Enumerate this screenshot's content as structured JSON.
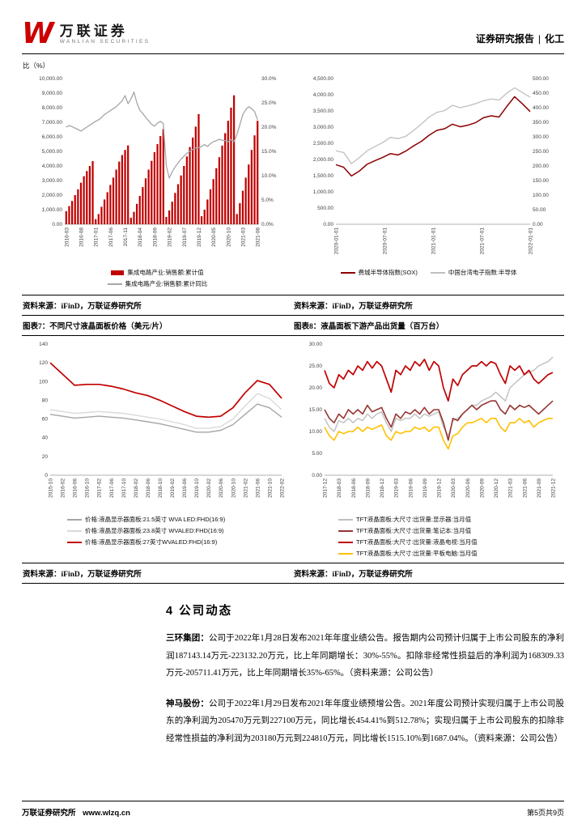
{
  "header": {
    "brand_w": "W",
    "brand_cn": "万联证券",
    "brand_en": "WANLIAN SECURITIES",
    "report_type": "证券研究报告",
    "divider": "|",
    "sector": "化工"
  },
  "charts_top": {
    "axis_note": "比（%）"
  },
  "sources": {
    "label": "资料来源：iFinD，万联证券研究所"
  },
  "figures": {
    "fig7": "图表7：不同尺寸液晶面板价格（美元/片）",
    "fig8": "图表8：液晶面板下游产品出货量（百万台）"
  },
  "section": {
    "title": "4 公司动态",
    "paragraphs": [
      {
        "lead": "三环集团：",
        "body": "公司于2022年1月28日发布2021年年度业绩公告。报告期内公司预计归属于上市公司股东的净利润187143.14万元-223132.20万元，比上年同期增长：30%-55%。扣除非经常性损益后的净利润为168309.33万元-205711.41万元，比上年同期增长35%-65%。（资料来源：公司公告）"
      },
      {
        "lead": "神马股份：",
        "body": "公司于2022年1月29日发布2021年年度业绩预增公告。2021年度公司预计实现归属于上市公司股东的净利润为205470万元到227100万元，同比增长454.41%到512.78%；实现归属于上市公司股东的扣除非经常性损益的净利润为203180万元到224810万元，同比增长1515.10%到1687.04%。（资料来源：公司公告）"
      }
    ]
  },
  "footer": {
    "org": "万联证券研究所",
    "url": "www.wlzq.cn",
    "page": "第5页共9页"
  },
  "colors": {
    "brand_red": "#cc0000",
    "chart_red": "#c00000",
    "dark_red": "#963634",
    "gray": "#a6a6a6",
    "light_gray": "#d9d9d9",
    "yellow": "#ffc000"
  },
  "chart_data": [
    {
      "type": "bar+line",
      "legend_position": "bottom",
      "x_ticks": [
        "2016-03",
        "2016-08",
        "2017-01",
        "2017-06",
        "2017-11",
        "2018-04",
        "2018-09",
        "2019-02",
        "2019-07",
        "2019-12",
        "2020-05",
        "2020-10",
        "2021-03",
        "2021-08"
      ],
      "ylim_left": [
        0,
        10000
      ],
      "yticks_left": [
        "0.00",
        "1,000.00",
        "2,000.00",
        "3,000.00",
        "4,000.00",
        "5,000.00",
        "6,000.00",
        "7,000.00",
        "8,000.00",
        "9,000.00",
        "10,000.00"
      ],
      "ylim_right": [
        0,
        30
      ],
      "yticks_right": [
        "0.0%",
        "5.0%",
        "10.0%",
        "15.0%",
        "20.0%",
        "25.0%",
        "30.0%"
      ],
      "series": [
        {
          "name": "集成电路产业:销售额:累计值",
          "type": "bar",
          "axis": "left",
          "color": "#c00000",
          "values": [
            900,
            1250,
            1600,
            2000,
            2400,
            2850,
            3300,
            3650,
            4000,
            4336,
            350,
            700,
            1200,
            1700,
            2200,
            2700,
            3200,
            3750,
            4300,
            4750,
            5100,
            5411,
            450,
            850,
            1400,
            1950,
            2550,
            3150,
            3750,
            4350,
            4950,
            5500,
            6050,
            6532,
            500,
            950,
            1550,
            2150,
            2750,
            3350,
            4000,
            4650,
            5300,
            5950,
            6700,
            7562,
            550,
            1000,
            1700,
            2400,
            3100,
            3850,
            4600,
            5400,
            6250,
            7100,
            8000,
            8848,
            700,
            1450,
            2300,
            3200,
            4100,
            5100,
            6100,
            7100
          ]
        },
        {
          "name": "集成电路产业:销售额:累计同比",
          "type": "line",
          "axis": "right",
          "color": "#a6a6a6",
          "values": [
            20.0,
            20.3,
            20.1,
            19.8,
            19.5,
            19.2,
            19.6,
            20.0,
            20.4,
            20.8,
            21.2,
            21.5,
            22.0,
            22.6,
            23.0,
            23.4,
            23.8,
            24.2,
            24.8,
            25.4,
            26.5,
            24.8,
            25.8,
            27.2,
            25.0,
            23.5,
            22.8,
            22.0,
            21.3,
            20.6,
            20.2,
            20.8,
            21.2,
            20.7,
            12.0,
            9.5,
            10.8,
            11.8,
            12.6,
            13.4,
            14.0,
            14.6,
            15.0,
            15.4,
            15.7,
            15.8,
            16.0,
            16.4,
            16.0,
            16.6,
            17.0,
            17.2,
            17.5,
            17.3,
            17.2,
            17.0,
            17.4,
            17.0,
            18.5,
            20.5,
            22.6,
            23.6,
            24.2,
            23.8,
            23.2,
            21.5
          ]
        }
      ]
    },
    {
      "type": "line",
      "legend_position": "bottom",
      "x_ticks": [
        "2020-01-01",
        "2020-07-01",
        "2021-01-01",
        "2021-07-01",
        "2022-01-01"
      ],
      "ylim_left": [
        0,
        4500
      ],
      "yticks_left": [
        "0.00",
        "500.00",
        "1,000.00",
        "1,500.00",
        "2,000.00",
        "2,500.00",
        "3,000.00",
        "3,500.00",
        "4,000.00",
        "4,500.00"
      ],
      "ylim_right": [
        0,
        500
      ],
      "yticks_right": [
        "0.00",
        "50.00",
        "100.00",
        "150.00",
        "200.00",
        "250.00",
        "300.00",
        "350.00",
        "400.00",
        "450.00",
        "500.00"
      ],
      "series": [
        {
          "name": "费城半导体指数(SOX)",
          "type": "line",
          "axis": "left",
          "color": "#8b0000",
          "values": [
            1840,
            1760,
            1490,
            1640,
            1850,
            1960,
            2060,
            2180,
            2140,
            2260,
            2420,
            2560,
            2750,
            2900,
            2950,
            3090,
            3010,
            3060,
            3140,
            3290,
            3350,
            3310,
            3640,
            3940,
            3720,
            3480
          ]
        },
        {
          "name": "中国台湾电子指数:半导体",
          "type": "line",
          "axis": "right",
          "color": "#bfbfbf",
          "values": [
            252,
            246,
            208,
            228,
            252,
            266,
            280,
            298,
            294,
            302,
            322,
            344,
            368,
            384,
            390,
            408,
            400,
            406,
            414,
            424,
            430,
            426,
            450,
            468,
            452,
            436
          ]
        }
      ]
    },
    {
      "type": "line",
      "title": "不同尺寸液晶面板价格（美元/片）",
      "legend_position": "bottom",
      "x_ticks": [
        "2015-10",
        "2016-02",
        "2016-06",
        "2016-10",
        "2017-02",
        "2017-06",
        "2017-10",
        "2018-02",
        "2018-06",
        "2018-10",
        "2019-02",
        "2019-06",
        "2019-10",
        "2020-02",
        "2020-06",
        "2020-10",
        "2021-02",
        "2021-06",
        "2021-10",
        "2022-02"
      ],
      "ylim_left": [
        0,
        140
      ],
      "yticks_left": [
        "0",
        "20",
        "40",
        "60",
        "80",
        "100",
        "120",
        "140"
      ],
      "series": [
        {
          "name": "价格:液晶显示器面板:21.5英寸 WVA LED:FHD(16:9)",
          "type": "line",
          "axis": "left",
          "color": "#a6a6a6",
          "values": [
            65,
            63,
            61,
            62,
            63,
            62,
            61,
            59,
            57,
            55,
            52,
            49,
            46,
            46,
            48,
            54,
            65,
            76,
            72,
            62
          ]
        },
        {
          "name": "价格:液晶显示器面板:23.8英寸 WVALED:FHD(16:9)",
          "type": "line",
          "axis": "left",
          "color": "#d9d9d9",
          "values": [
            70,
            68,
            66,
            67,
            68,
            67,
            66,
            64,
            62,
            60,
            57,
            54,
            50,
            50,
            52,
            60,
            74,
            87,
            82,
            70
          ]
        },
        {
          "name": "价格:液晶显示器面板:27英寸WVALED:FHD(16:9)",
          "type": "line",
          "axis": "left",
          "color": "#c00000",
          "values": [
            120,
            108,
            96,
            97,
            97,
            95,
            92,
            88,
            85,
            80,
            74,
            68,
            63,
            62,
            63,
            72,
            88,
            101,
            97,
            82
          ]
        }
      ]
    },
    {
      "type": "line",
      "title": "液晶面板下游产品出货量（百万台）",
      "legend_position": "bottom",
      "x_ticks": [
        "2017-12",
        "2018-03",
        "2018-06",
        "2018-09",
        "2018-12",
        "2019-03",
        "2019-06",
        "2019-09",
        "2019-12",
        "2020-03",
        "2020-06",
        "2020-09",
        "2020-12",
        "2021-03",
        "2021-06",
        "2021-09",
        "2021-12"
      ],
      "ylim_left": [
        0,
        30
      ],
      "yticks_left": [
        "0.00",
        "5.00",
        "10.00",
        "15.00",
        "20.00",
        "25.00",
        "30.00"
      ],
      "series": [
        {
          "name": "TFT液晶面板:大尺寸:出货量:显示器:当月值",
          "type": "line",
          "axis": "left",
          "color": "#bfbfbf",
          "values": [
            13,
            11,
            10,
            12.5,
            12,
            13,
            12,
            13,
            12.5,
            14,
            13,
            14,
            14.5,
            12,
            10,
            13,
            12.5,
            13,
            13,
            14,
            13,
            14,
            13.5,
            14,
            14.5,
            11,
            9,
            12.5,
            13,
            14,
            15,
            16,
            16,
            17,
            17.5,
            18,
            19,
            18,
            17,
            20,
            21,
            22,
            23,
            23.5,
            24,
            25,
            25.5,
            26,
            27
          ]
        },
        {
          "name": "TFT液晶面板:大尺寸:出货量:笔记本:当月值",
          "type": "line",
          "axis": "left",
          "color": "#963634",
          "values": [
            15,
            13,
            12,
            14,
            13,
            15,
            14,
            15,
            14,
            16,
            14.5,
            15,
            15.5,
            13,
            11,
            14,
            13,
            14.5,
            14,
            15,
            14,
            15.5,
            14,
            15,
            15,
            12,
            8,
            13,
            12.5,
            14,
            15,
            16,
            15,
            16,
            16.5,
            17,
            17,
            15,
            14,
            16,
            15,
            16,
            15.5,
            16,
            15,
            14,
            15,
            16,
            17
          ]
        },
        {
          "name": "TFT液晶面板:大尺寸:出货量:液晶电视:当月值",
          "type": "line",
          "axis": "left",
          "color": "#c00000",
          "values": [
            24,
            21,
            20,
            23,
            22,
            24,
            23,
            25,
            24,
            26,
            24.5,
            26,
            25,
            22,
            19,
            24,
            23,
            25,
            24,
            26,
            25,
            26.5,
            24,
            26,
            25,
            20,
            17,
            22,
            20.5,
            23,
            24,
            25,
            25,
            26,
            25,
            26,
            25.5,
            23,
            21,
            25,
            24,
            25,
            23,
            24,
            22,
            21,
            22,
            23,
            23.5
          ]
        },
        {
          "name": "TFT液晶面板:大尺寸:出货量:平板电脑:当月值",
          "type": "line",
          "axis": "left",
          "color": "#ffc000",
          "values": [
            11,
            9,
            8,
            10,
            9.5,
            10,
            10,
            11,
            10,
            11,
            10.5,
            11,
            11.5,
            9,
            8,
            10,
            9.5,
            10,
            10,
            11,
            10.5,
            11,
            10,
            11,
            11,
            8,
            6,
            9,
            9.5,
            11,
            12,
            12,
            12.5,
            13,
            12,
            13,
            13,
            11,
            10,
            12,
            12,
            13,
            12,
            12.5,
            11,
            12,
            12.5,
            13,
            13
          ]
        }
      ]
    }
  ]
}
